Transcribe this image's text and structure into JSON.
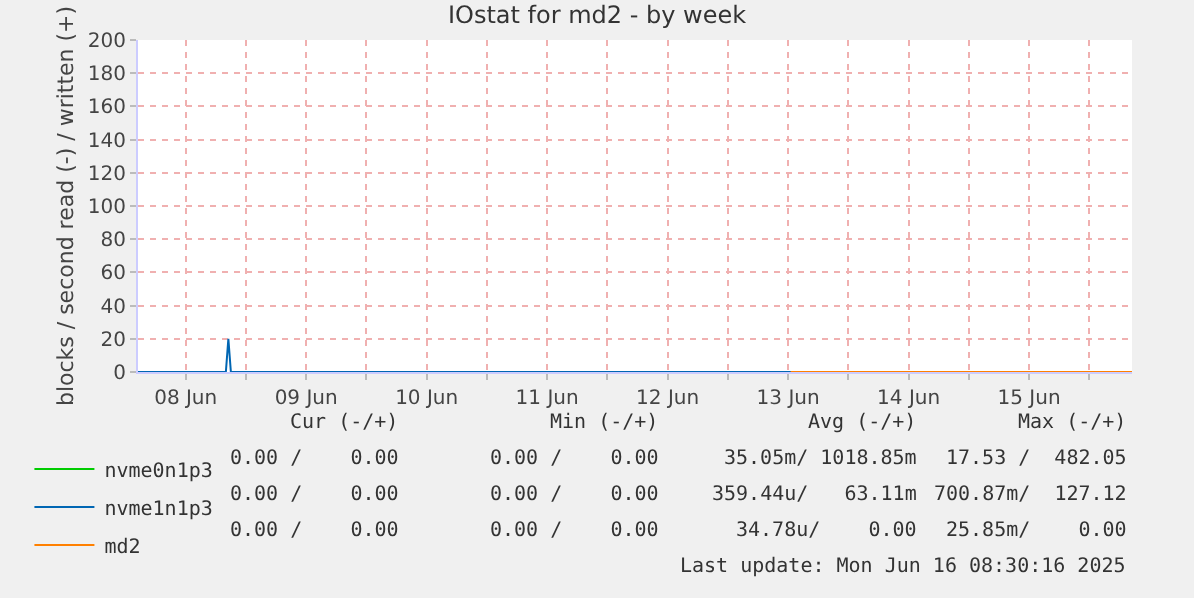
{
  "chart_data": {
    "type": "line",
    "title": "IOstat for md2 - by week",
    "ylabel": "blocks / second read (-) / written (+)",
    "xlim": [
      "2025-06-08T02:30",
      "2025-06-16T08:30"
    ],
    "ylim": [
      0,
      200
    ],
    "yticks": [
      0,
      20,
      40,
      60,
      80,
      100,
      120,
      140,
      160,
      180,
      200
    ],
    "xticks": [
      {
        "value": "2025-06-08T12:00",
        "label": "08 Jun"
      },
      {
        "value": "2025-06-09T00:00",
        "label": null
      },
      {
        "value": "2025-06-09T12:00",
        "label": "09 Jun"
      },
      {
        "value": "2025-06-10T00:00",
        "label": null
      },
      {
        "value": "2025-06-10T12:00",
        "label": "10 Jun"
      },
      {
        "value": "2025-06-11T00:00",
        "label": null
      },
      {
        "value": "2025-06-11T12:00",
        "label": "11 Jun"
      },
      {
        "value": "2025-06-12T00:00",
        "label": null
      },
      {
        "value": "2025-06-12T12:00",
        "label": "12 Jun"
      },
      {
        "value": "2025-06-13T00:00",
        "label": null
      },
      {
        "value": "2025-06-13T12:00",
        "label": "13 Jun"
      },
      {
        "value": "2025-06-14T00:00",
        "label": null
      },
      {
        "value": "2025-06-14T12:00",
        "label": "14 Jun"
      },
      {
        "value": "2025-06-15T00:00",
        "label": null
      },
      {
        "value": "2025-06-15T12:00",
        "label": "15 Jun"
      },
      {
        "value": "2025-06-16T00:00",
        "label": null
      }
    ],
    "grid": true,
    "legend": "bottom left",
    "marker": "none",
    "line_style": "solid",
    "series": [
      {
        "name": "nvme0n1p3",
        "color": "#00cc00",
        "values": [
          null
        ]
      },
      {
        "name": "nvme1n1p3",
        "color": "#0066b3",
        "x": [
          "2025-06-08T02:30",
          "2025-06-08T20:00",
          "2025-06-08T20:30",
          "2025-06-08T21:00",
          "2025-06-16T08:30"
        ],
        "values": [
          0,
          0,
          20,
          0,
          0
        ]
      },
      {
        "name": "md2",
        "color": "#ff8000",
        "x": [
          "2025-06-13T12:30",
          "2025-06-16T08:30"
        ],
        "values": [
          0,
          0
        ]
      }
    ],
    "annotations": [
      "Cur (-/+)",
      "Min (-/+)",
      "Avg (-/+)",
      "Max (-/+)",
      "0.00 /    0.00",
      "0.00 /    0.00",
      "35.05m/ 1018.85m",
      "17.53 /  482.05",
      "0.00 /    0.00",
      "0.00 /    0.00",
      "359.44u/   63.11m",
      "700.87m/  127.12",
      "0.00 /    0.00",
      "0.00 /    0.00",
      "34.78u/    0.00",
      "25.85m/    0.00",
      "Last update: Mon Jun 16 08:30:16 2025"
    ]
  }
}
